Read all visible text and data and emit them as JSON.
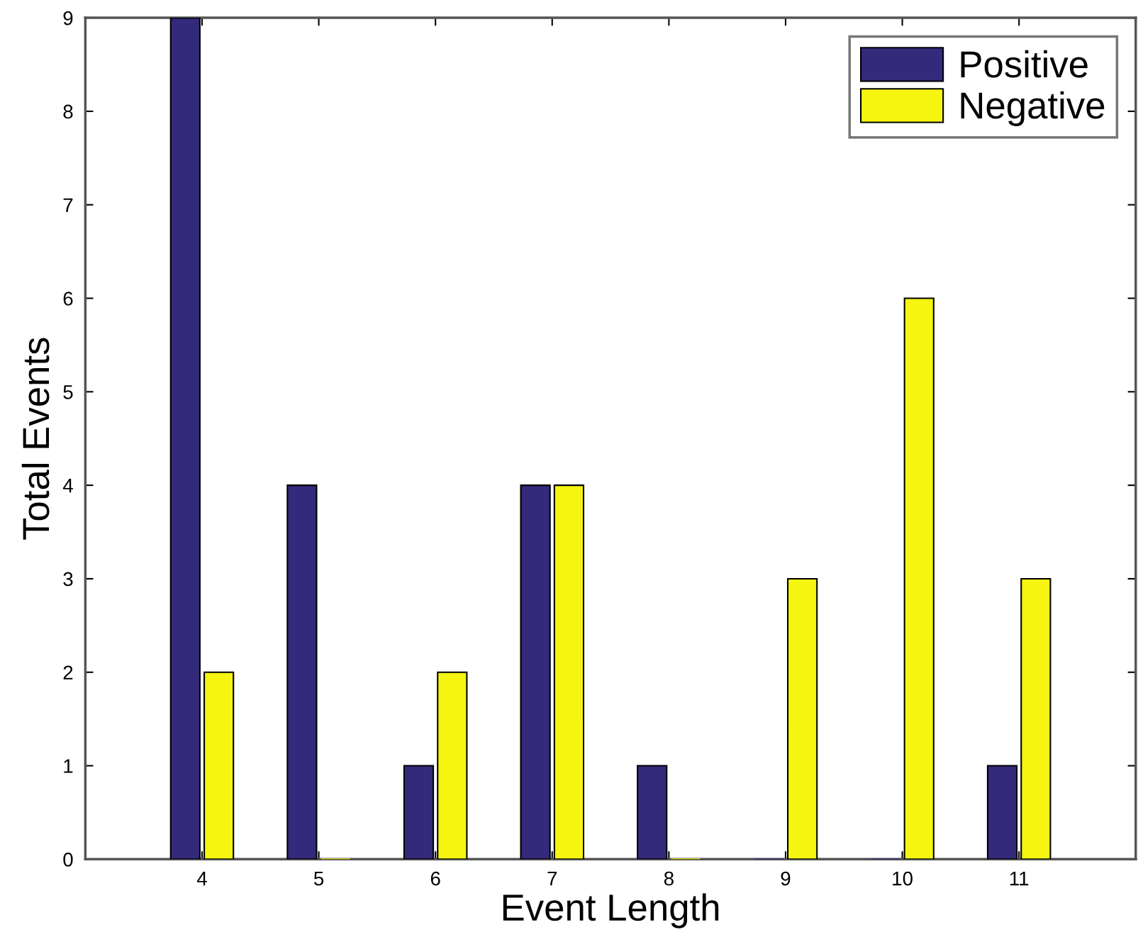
{
  "chart_data": {
    "type": "bar",
    "xlabel": "Event Length",
    "ylabel": "Total Events",
    "x": [
      4,
      5,
      6,
      7,
      8,
      9,
      10,
      11
    ],
    "series": [
      {
        "name": "Positive",
        "color": "#332a7c",
        "values": [
          9,
          4,
          1,
          4,
          1,
          0,
          0,
          1
        ]
      },
      {
        "name": "Negative",
        "color": "#f5f50f",
        "values": [
          2,
          0,
          2,
          4,
          0,
          3,
          6,
          3
        ]
      }
    ],
    "xlim": [
      3,
      12
    ],
    "xticks": [
      4,
      5,
      6,
      7,
      8,
      9,
      10,
      11
    ],
    "ylim": [
      0,
      9
    ],
    "yticks": [
      0,
      1,
      2,
      3,
      4,
      5,
      6,
      7,
      8,
      9
    ],
    "grid": false,
    "legend": "top right"
  }
}
